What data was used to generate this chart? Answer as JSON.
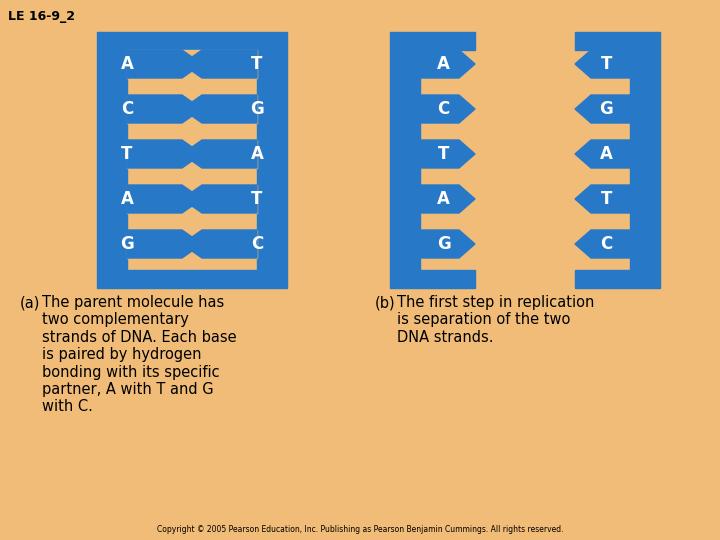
{
  "bg_color": "#F0BC78",
  "blue": "#2878C8",
  "tan": "#F0BC78",
  "title": "LE 16-9_2",
  "caption_a_label": "(a)",
  "caption_a_text": "The parent molecule has\ntwo complementary\nstrands of DNA. Each base\nis paired by hydrogen\nbonding with its specific\npartner, A with T and G\nwith C.",
  "caption_b_label": "(b)",
  "caption_b_text": "The first step in replication\nis separation of the two\nDNA strands.",
  "copyright": "Copyright © 2005 Pearson Education, Inc. Publishing as Pearson Benjamin Cummings. All rights reserved.",
  "bases_left": [
    "A",
    "C",
    "T",
    "A",
    "G"
  ],
  "bases_right": [
    "T",
    "G",
    "A",
    "T",
    "C"
  ],
  "rung_pairs_a": [
    [
      "A",
      "T"
    ],
    [
      "C",
      "G"
    ],
    [
      "T",
      "A"
    ],
    [
      "A",
      "T"
    ],
    [
      "G",
      "C"
    ]
  ],
  "rung_pairs_b_left": [
    "A",
    "C",
    "T",
    "A",
    "G"
  ],
  "rung_pairs_b_right": [
    "T",
    "G",
    "A",
    "T",
    "C"
  ]
}
